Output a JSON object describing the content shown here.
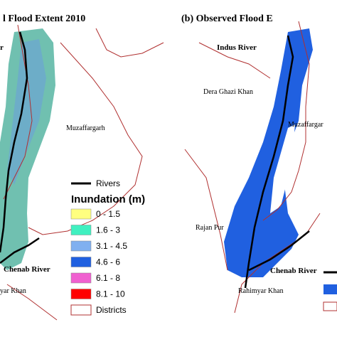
{
  "panels": [
    {
      "title": "l Flood Extent 2010",
      "places": [
        "r",
        "Muzaffargarh",
        "Chenab River",
        "yar Khan"
      ]
    },
    {
      "title": "(b) Observed Flood E",
      "places": [
        "Indus River",
        "Dera Ghazi Khan",
        "Muzaffargar",
        "Rajan Pur",
        "Chenab River",
        "Rahimyar Khan"
      ]
    }
  ],
  "legend": {
    "rivers": "Rivers",
    "title": "Inundation (m)",
    "classes": [
      {
        "label": "0 - 1.5",
        "color": "#ffff80"
      },
      {
        "label": "1.6 - 3",
        "color": "#40f0c0"
      },
      {
        "label": "3.1 - 4.5",
        "color": "#80b0f0"
      },
      {
        "label": "4.6 - 6",
        "color": "#2060e0"
      },
      {
        "label": "6.1 - 8",
        "color": "#f060d0"
      },
      {
        "label": "8.1 - 10",
        "color": "#ff0000"
      }
    ],
    "districts": "Districts"
  }
}
